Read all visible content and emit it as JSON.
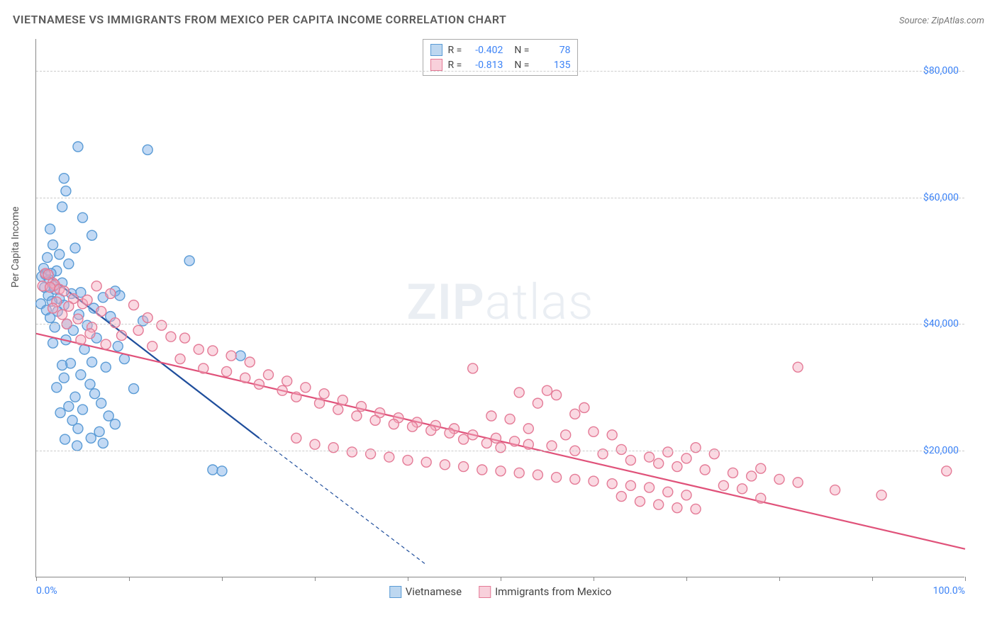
{
  "title": "VIETNAMESE VS IMMIGRANTS FROM MEXICO PER CAPITA INCOME CORRELATION CHART",
  "source_label": "Source: ",
  "source_value": "ZipAtlas.com",
  "y_axis_label": "Per Capita Income",
  "watermark_bold": "ZIP",
  "watermark_light": "atlas",
  "chart": {
    "type": "scatter",
    "background_color": "#ffffff",
    "grid_color": "#cccccc",
    "axis_color": "#888888",
    "xlim": [
      0,
      100
    ],
    "ylim": [
      0,
      85000
    ],
    "x_ticks": [
      0,
      10,
      20,
      30,
      40,
      50,
      60,
      70,
      80,
      90,
      100
    ],
    "x_tick_labels": {
      "0": "0.0%",
      "100": "100.0%"
    },
    "y_ticks": [
      20000,
      40000,
      60000,
      80000
    ],
    "y_tick_labels": [
      "$20,000",
      "$40,000",
      "$60,000",
      "$80,000"
    ],
    "marker_radius": 7,
    "marker_stroke_width": 1.4,
    "series": [
      {
        "name": "Vietnamese",
        "fill_color": "rgba(120,170,230,0.45)",
        "stroke_color": "#5a9bd5",
        "swatch_fill": "#bdd7f0",
        "swatch_border": "#5a9bd5",
        "R": "-0.402",
        "N": "78",
        "trend": {
          "x1": 0.5,
          "y1": 48500,
          "x2": 24,
          "y2": 22000,
          "extend_x2": 42,
          "extend_y2": 2000,
          "color": "#1f4e9c",
          "width": 2.2
        },
        "points": [
          [
            4.5,
            68000
          ],
          [
            12,
            67500
          ],
          [
            3,
            63000
          ],
          [
            3.2,
            61000
          ],
          [
            2.8,
            58500
          ],
          [
            5,
            56800
          ],
          [
            1.5,
            55000
          ],
          [
            6,
            54000
          ],
          [
            1.8,
            52500
          ],
          [
            4.2,
            52000
          ],
          [
            2.5,
            51000
          ],
          [
            1.2,
            50500
          ],
          [
            16.5,
            50000
          ],
          [
            3.5,
            49500
          ],
          [
            0.8,
            48800
          ],
          [
            2.2,
            48400
          ],
          [
            1.6,
            48000
          ],
          [
            1.0,
            47800
          ],
          [
            0.6,
            47500
          ],
          [
            1.4,
            47000
          ],
          [
            2.8,
            46500
          ],
          [
            1.9,
            46000
          ],
          [
            0.9,
            45800
          ],
          [
            2.0,
            45500
          ],
          [
            4.8,
            45000
          ],
          [
            3.8,
            44800
          ],
          [
            1.3,
            44500
          ],
          [
            8.5,
            45200
          ],
          [
            7.2,
            44200
          ],
          [
            2.5,
            44000
          ],
          [
            1.7,
            43600
          ],
          [
            0.5,
            43200
          ],
          [
            3.0,
            43000
          ],
          [
            9.0,
            44500
          ],
          [
            6.2,
            42500
          ],
          [
            1.1,
            42200
          ],
          [
            2.3,
            42000
          ],
          [
            4.6,
            41500
          ],
          [
            8.0,
            41200
          ],
          [
            1.5,
            41000
          ],
          [
            3.3,
            40000
          ],
          [
            5.5,
            39800
          ],
          [
            2.0,
            39500
          ],
          [
            4.0,
            39000
          ],
          [
            6.5,
            37800
          ],
          [
            3.2,
            37500
          ],
          [
            1.8,
            37000
          ],
          [
            8.8,
            36500
          ],
          [
            22,
            35000
          ],
          [
            5.2,
            36000
          ],
          [
            6.0,
            34000
          ],
          [
            9.5,
            34500
          ],
          [
            3.7,
            33800
          ],
          [
            7.5,
            33200
          ],
          [
            2.8,
            33500
          ],
          [
            4.8,
            32000
          ],
          [
            3.0,
            31500
          ],
          [
            11.5,
            40500
          ],
          [
            5.8,
            30500
          ],
          [
            2.2,
            30000
          ],
          [
            6.3,
            29000
          ],
          [
            4.2,
            28500
          ],
          [
            7.0,
            27500
          ],
          [
            10.5,
            29800
          ],
          [
            3.5,
            27000
          ],
          [
            5.0,
            26500
          ],
          [
            2.6,
            26000
          ],
          [
            7.8,
            25500
          ],
          [
            3.9,
            24800
          ],
          [
            8.5,
            24200
          ],
          [
            4.5,
            23500
          ],
          [
            6.8,
            23000
          ],
          [
            19,
            17000
          ],
          [
            20,
            16800
          ],
          [
            5.9,
            22000
          ],
          [
            3.1,
            21800
          ],
          [
            7.2,
            21200
          ],
          [
            4.4,
            20800
          ]
        ]
      },
      {
        "name": "Immigrants from Mexico",
        "fill_color": "rgba(245,170,190,0.45)",
        "stroke_color": "#e47a96",
        "swatch_fill": "#f8d0db",
        "swatch_border": "#e47a96",
        "R": "-0.813",
        "N": "135",
        "trend": {
          "x1": 0,
          "y1": 38500,
          "x2": 100,
          "y2": 4500,
          "color": "#e0527a",
          "width": 2.2
        },
        "points": [
          [
            1.0,
            48000
          ],
          [
            1.3,
            47800
          ],
          [
            1.8,
            46500
          ],
          [
            2.0,
            46200
          ],
          [
            0.7,
            46000
          ],
          [
            1.5,
            45800
          ],
          [
            2.5,
            45500
          ],
          [
            3.0,
            45200
          ],
          [
            6.5,
            46000
          ],
          [
            8.0,
            44800
          ],
          [
            4.0,
            44000
          ],
          [
            2.2,
            43500
          ],
          [
            5.0,
            43200
          ],
          [
            10.5,
            43000
          ],
          [
            3.5,
            42800
          ],
          [
            1.8,
            42500
          ],
          [
            5.5,
            43800
          ],
          [
            7.0,
            42000
          ],
          [
            2.8,
            41500
          ],
          [
            12.0,
            41000
          ],
          [
            4.5,
            40800
          ],
          [
            8.5,
            40200
          ],
          [
            3.3,
            40000
          ],
          [
            6.0,
            39500
          ],
          [
            13.5,
            39800
          ],
          [
            11.0,
            39000
          ],
          [
            5.8,
            38500
          ],
          [
            9.2,
            38200
          ],
          [
            14.5,
            38000
          ],
          [
            4.8,
            37500
          ],
          [
            16.0,
            37800
          ],
          [
            7.5,
            36800
          ],
          [
            12.5,
            36500
          ],
          [
            17.5,
            36000
          ],
          [
            19.0,
            35800
          ],
          [
            21.0,
            35000
          ],
          [
            15.5,
            34500
          ],
          [
            23.0,
            34000
          ],
          [
            47.0,
            33000
          ],
          [
            82.0,
            33200
          ],
          [
            18.0,
            33000
          ],
          [
            20.5,
            32500
          ],
          [
            25.0,
            32000
          ],
          [
            22.5,
            31500
          ],
          [
            27.0,
            31000
          ],
          [
            24.0,
            30500
          ],
          [
            29.0,
            30000
          ],
          [
            26.5,
            29500
          ],
          [
            31.0,
            29000
          ],
          [
            52.0,
            29200
          ],
          [
            56.0,
            28800
          ],
          [
            55.0,
            29500
          ],
          [
            28.0,
            28500
          ],
          [
            33.0,
            28000
          ],
          [
            30.5,
            27500
          ],
          [
            35.0,
            27000
          ],
          [
            54.0,
            27500
          ],
          [
            59.0,
            26800
          ],
          [
            32.5,
            26500
          ],
          [
            37.0,
            26000
          ],
          [
            34.5,
            25500
          ],
          [
            39.0,
            25200
          ],
          [
            49.0,
            25500
          ],
          [
            58.0,
            25800
          ],
          [
            51.0,
            25000
          ],
          [
            36.5,
            24800
          ],
          [
            41.0,
            24500
          ],
          [
            38.5,
            24200
          ],
          [
            43.0,
            24000
          ],
          [
            40.5,
            23800
          ],
          [
            45.0,
            23500
          ],
          [
            42.5,
            23200
          ],
          [
            53.0,
            23500
          ],
          [
            60.0,
            23000
          ],
          [
            57.0,
            22500
          ],
          [
            62.0,
            22500
          ],
          [
            44.5,
            22800
          ],
          [
            47.0,
            22500
          ],
          [
            28.0,
            22000
          ],
          [
            49.5,
            22000
          ],
          [
            46.0,
            21800
          ],
          [
            51.5,
            21500
          ],
          [
            48.5,
            21200
          ],
          [
            30.0,
            21000
          ],
          [
            53.0,
            21000
          ],
          [
            55.5,
            20800
          ],
          [
            32.0,
            20500
          ],
          [
            50.0,
            20500
          ],
          [
            58.0,
            20000
          ],
          [
            34.0,
            19800
          ],
          [
            63.0,
            20200
          ],
          [
            61.0,
            19500
          ],
          [
            68.0,
            19800
          ],
          [
            36.0,
            19500
          ],
          [
            66.0,
            19000
          ],
          [
            38.0,
            19000
          ],
          [
            71.0,
            20500
          ],
          [
            64.0,
            18500
          ],
          [
            40.0,
            18500
          ],
          [
            70.0,
            18800
          ],
          [
            67.0,
            18000
          ],
          [
            42.0,
            18200
          ],
          [
            73.0,
            19500
          ],
          [
            69.0,
            17500
          ],
          [
            78.0,
            17200
          ],
          [
            44.0,
            17800
          ],
          [
            72.0,
            17000
          ],
          [
            46.0,
            17500
          ],
          [
            98.0,
            16800
          ],
          [
            75.0,
            16500
          ],
          [
            48.0,
            17000
          ],
          [
            77.0,
            16000
          ],
          [
            50.0,
            16800
          ],
          [
            80.0,
            15500
          ],
          [
            52.0,
            16500
          ],
          [
            82.0,
            15000
          ],
          [
            54.0,
            16200
          ],
          [
            74.0,
            14500
          ],
          [
            56.0,
            15800
          ],
          [
            76.0,
            14000
          ],
          [
            58.0,
            15500
          ],
          [
            68.0,
            13500
          ],
          [
            60.0,
            15200
          ],
          [
            86.0,
            13800
          ],
          [
            70.0,
            13000
          ],
          [
            62.0,
            14800
          ],
          [
            63.0,
            12800
          ],
          [
            64.0,
            14500
          ],
          [
            78.0,
            12500
          ],
          [
            66.0,
            14200
          ],
          [
            65.0,
            12000
          ],
          [
            91.0,
            13000
          ],
          [
            67.0,
            11500
          ],
          [
            69.0,
            11000
          ],
          [
            71.0,
            10800
          ]
        ]
      }
    ]
  },
  "stats_labels": {
    "R": "R =",
    "N": "N ="
  }
}
